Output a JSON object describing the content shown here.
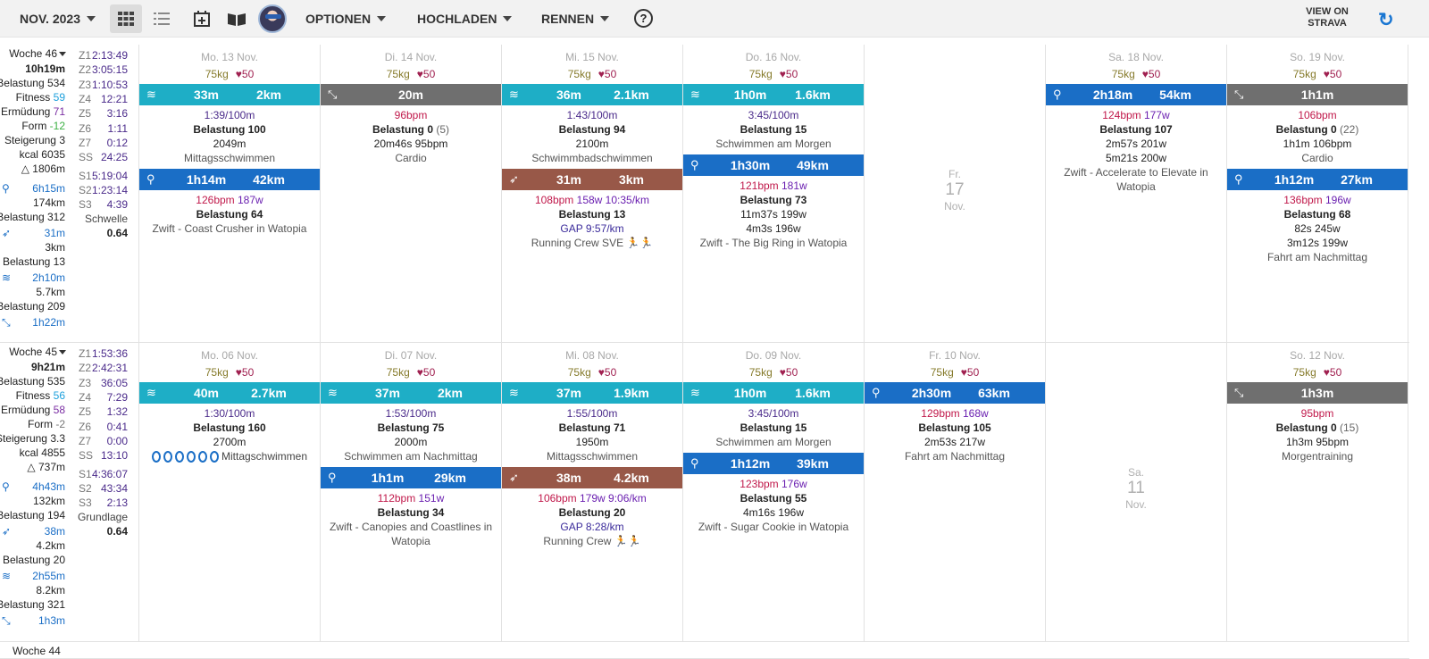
{
  "toolbar": {
    "month": "NOV. 2023",
    "options": "OPTIONEN",
    "upload": "HOCHLADEN",
    "races": "RENNEN",
    "help": "?",
    "strava": "VIEW ON STRAVA"
  },
  "weeks": [
    {
      "label": "Woche 46",
      "time": "10h19m",
      "load": "Belastung 534",
      "fitness_label": "Fitness",
      "fitness": "59",
      "fatigue_label": "Ermüdung",
      "fatigue": "71",
      "form_label": "Form",
      "form": "-12",
      "ramp": "Steigerung 3",
      "kcal": "kcal 6035",
      "elev": "△ 1806m",
      "bike_time": "6h15m",
      "bike_dist": "174km",
      "bike_load": "Belastung 312",
      "run_time": "31m",
      "run_dist": "3km",
      "run_load": "Belastung 13",
      "swim_time": "2h10m",
      "swim_dist": "5.7km",
      "swim_load": "Belastung 209",
      "other_time": "1h22m",
      "zones": [
        [
          "Z1",
          "2:13:49"
        ],
        [
          "Z2",
          "3:05:15"
        ],
        [
          "Z3",
          "1:10:53"
        ],
        [
          "Z4",
          "12:21"
        ],
        [
          "Z5",
          "3:16"
        ],
        [
          "Z6",
          "1:11"
        ],
        [
          "Z7",
          "0:12"
        ],
        [
          "SS",
          "24:25"
        ]
      ],
      "s_zones": [
        [
          "S1",
          "5:19:04"
        ],
        [
          "S2",
          "1:23:14"
        ],
        [
          "S3",
          "4:39"
        ]
      ],
      "type": "Schwelle",
      "type_val": "0.64"
    },
    {
      "label": "Woche 45",
      "time": "9h21m",
      "load": "Belastung 535",
      "fitness_label": "Fitness",
      "fitness": "56",
      "fatigue_label": "Ermüdung",
      "fatigue": "58",
      "form_label": "Form",
      "form": "-2",
      "ramp": "Steigerung 3.3",
      "kcal": "kcal 4855",
      "elev": "△ 737m",
      "bike_time": "4h43m",
      "bike_dist": "132km",
      "bike_load": "Belastung 194",
      "run_time": "38m",
      "run_dist": "4.2km",
      "run_load": "Belastung 20",
      "swim_time": "2h55m",
      "swim_dist": "8.2km",
      "swim_load": "Belastung 321",
      "other_time": "1h3m",
      "zones": [
        [
          "Z1",
          "1:53:36"
        ],
        [
          "Z2",
          "2:42:31"
        ],
        [
          "Z3",
          "36:05"
        ],
        [
          "Z4",
          "7:29"
        ],
        [
          "Z5",
          "1:32"
        ],
        [
          "Z6",
          "0:41"
        ],
        [
          "Z7",
          "0:00"
        ],
        [
          "SS",
          "13:10"
        ]
      ],
      "s_zones": [
        [
          "S1",
          "4:36:07"
        ],
        [
          "S2",
          "43:34"
        ],
        [
          "S3",
          "2:13"
        ]
      ],
      "type": "Grundlage",
      "type_val": "0.64"
    }
  ],
  "w46": [
    {
      "hd": "Mo. 13 Nov.",
      "kg": "75kg",
      "hr": "50",
      "acts": [
        {
          "t": "swim",
          "dur": "33m",
          "dist": "2km",
          "lines": [
            [
              "pur",
              "1:39/100m"
            ],
            [
              "b",
              "Belastung 100"
            ],
            [
              "n",
              "2049m"
            ],
            [
              "m",
              "Mittagsschwimmen"
            ]
          ]
        },
        {
          "t": "bike",
          "dur": "1h14m",
          "dist": "42km",
          "lines": [
            [
              "hrw",
              "126bpm",
              "187w"
            ],
            [
              "b",
              "Belastung 64"
            ],
            [
              "m",
              "Zwift - Coast Crusher in Watopia"
            ]
          ]
        }
      ]
    },
    {
      "hd": "Di. 14 Nov.",
      "kg": "75kg",
      "hr": "50",
      "acts": [
        {
          "t": "other",
          "dur": "20m",
          "dist": "",
          "lines": [
            [
              "hrc",
              "96bpm"
            ],
            [
              "b",
              "Belastung 0",
              "(5)"
            ],
            [
              "n",
              "20m46s 95bpm"
            ],
            [
              "m",
              "Cardio"
            ]
          ]
        }
      ]
    },
    {
      "hd": "Mi. 15 Nov.",
      "kg": "75kg",
      "hr": "50",
      "acts": [
        {
          "t": "swim",
          "dur": "36m",
          "dist": "2.1km",
          "lines": [
            [
              "pur",
              "1:43/100m"
            ],
            [
              "b",
              "Belastung 94"
            ],
            [
              "n",
              "2100m"
            ],
            [
              "m",
              "Schwimmbadschwimmen"
            ]
          ]
        },
        {
          "t": "run",
          "dur": "31m",
          "dist": "3km",
          "lines": [
            [
              "run",
              "108bpm",
              "158w",
              "10:35/km"
            ],
            [
              "b",
              "Belastung 13"
            ],
            [
              "gap",
              "GAP 9:57/km"
            ],
            [
              "m",
              "Running Crew SVE 🏃🏃"
            ]
          ]
        }
      ]
    },
    {
      "hd": "Do. 16 Nov.",
      "kg": "75kg",
      "hr": "50",
      "acts": [
        {
          "t": "swim",
          "dur": "1h0m",
          "dist": "1.6km",
          "lines": [
            [
              "pur",
              "3:45/100m"
            ],
            [
              "b",
              "Belastung 15"
            ],
            [
              "m",
              "Schwimmen am Morgen"
            ]
          ]
        },
        {
          "t": "bike",
          "dur": "1h30m",
          "dist": "49km",
          "lines": [
            [
              "hrw",
              "121bpm",
              "181w"
            ],
            [
              "b",
              "Belastung 73"
            ],
            [
              "n",
              "11m37s 199w"
            ],
            [
              "n",
              "4m3s 196w"
            ],
            [
              "m",
              "Zwift - The Big Ring in Watopia"
            ]
          ]
        }
      ]
    },
    {
      "hd": "",
      "free": [
        "Fr.",
        "17",
        "Nov."
      ],
      "acts": []
    },
    {
      "hd": "Sa. 18 Nov.",
      "kg": "75kg",
      "hr": "50",
      "acts": [
        {
          "t": "bike",
          "dur": "2h18m",
          "dist": "54km",
          "lines": [
            [
              "hrw",
              "124bpm",
              "177w"
            ],
            [
              "b",
              "Belastung 107"
            ],
            [
              "n",
              "2m57s 201w"
            ],
            [
              "n",
              "5m21s 200w"
            ],
            [
              "m",
              "Zwift - Accelerate to Elevate in"
            ],
            [
              "m",
              "Watopia"
            ]
          ]
        }
      ]
    },
    {
      "hd": "So. 19 Nov.",
      "kg": "75kg",
      "hr": "50",
      "acts": [
        {
          "t": "other",
          "dur": "1h1m",
          "dist": "",
          "lines": [
            [
              "hrc",
              "106bpm"
            ],
            [
              "b",
              "Belastung 0",
              "(22)"
            ],
            [
              "n",
              "1h1m 106bpm"
            ],
            [
              "m",
              "Cardio"
            ]
          ]
        },
        {
          "t": "bike",
          "dur": "1h12m",
          "dist": "27km",
          "lines": [
            [
              "hrw",
              "136bpm",
              "196w"
            ],
            [
              "b",
              "Belastung 68"
            ],
            [
              "n",
              "82s 245w"
            ],
            [
              "n",
              "3m12s 199w"
            ],
            [
              "m",
              "Fahrt am Nachmittag"
            ]
          ]
        }
      ]
    }
  ],
  "w45": [
    {
      "hd": "Mo. 06 Nov.",
      "kg": "75kg",
      "hr": "50",
      "acts": [
        {
          "t": "swim",
          "dur": "40m",
          "dist": "2.7km",
          "lines": [
            [
              "pur",
              "1:30/100m"
            ],
            [
              "b",
              "Belastung 160"
            ],
            [
              "n",
              "2700m"
            ],
            [
              "clk",
              "Mittagschwimmen"
            ]
          ]
        }
      ]
    },
    {
      "hd": "Di. 07 Nov.",
      "kg": "75kg",
      "hr": "50",
      "acts": [
        {
          "t": "swim",
          "dur": "37m",
          "dist": "2km",
          "lines": [
            [
              "pur",
              "1:53/100m"
            ],
            [
              "b",
              "Belastung 75"
            ],
            [
              "n",
              "2000m"
            ],
            [
              "m",
              "Schwimmen am Nachmittag"
            ]
          ]
        },
        {
          "t": "bike",
          "dur": "1h1m",
          "dist": "29km",
          "lines": [
            [
              "hrw",
              "112bpm",
              "151w"
            ],
            [
              "b",
              "Belastung 34"
            ],
            [
              "m",
              "Zwift - Canopies and Coastlines in"
            ],
            [
              "m",
              "Watopia"
            ]
          ]
        }
      ]
    },
    {
      "hd": "Mi. 08 Nov.",
      "kg": "75kg",
      "hr": "50",
      "acts": [
        {
          "t": "swim",
          "dur": "37m",
          "dist": "1.9km",
          "lines": [
            [
              "pur",
              "1:55/100m"
            ],
            [
              "b",
              "Belastung 71"
            ],
            [
              "n",
              "1950m"
            ],
            [
              "m",
              "Mittagsschwimmen"
            ]
          ]
        },
        {
          "t": "run",
          "dur": "38m",
          "dist": "4.2km",
          "lines": [
            [
              "run",
              "106bpm",
              "179w",
              "9:06/km"
            ],
            [
              "b",
              "Belastung 20"
            ],
            [
              "gap",
              "GAP 8:28/km"
            ],
            [
              "m",
              "Running Crew 🏃🏃"
            ]
          ]
        }
      ]
    },
    {
      "hd": "Do. 09 Nov.",
      "kg": "75kg",
      "hr": "50",
      "acts": [
        {
          "t": "swim",
          "dur": "1h0m",
          "dist": "1.6km",
          "lines": [
            [
              "pur",
              "3:45/100m"
            ],
            [
              "b",
              "Belastung 15"
            ],
            [
              "m",
              "Schwimmen am Morgen"
            ]
          ]
        },
        {
          "t": "bike",
          "dur": "1h12m",
          "dist": "39km",
          "lines": [
            [
              "hrw",
              "123bpm",
              "176w"
            ],
            [
              "b",
              "Belastung 55"
            ],
            [
              "n",
              "4m16s 196w"
            ],
            [
              "m",
              "Zwift - Sugar Cookie in Watopia"
            ]
          ]
        }
      ]
    },
    {
      "hd": "Fr. 10 Nov.",
      "kg": "75kg",
      "hr": "50",
      "acts": [
        {
          "t": "bike",
          "dur": "2h30m",
          "dist": "63km",
          "lines": [
            [
              "hrw",
              "129bpm",
              "168w"
            ],
            [
              "b",
              "Belastung 105"
            ],
            [
              "n",
              "2m53s 217w"
            ],
            [
              "m",
              "Fahrt am Nachmittag"
            ]
          ]
        }
      ]
    },
    {
      "hd": "",
      "free": [
        "Sa.",
        "11",
        "Nov."
      ],
      "acts": []
    },
    {
      "hd": "So. 12 Nov.",
      "kg": "75kg",
      "hr": "50",
      "acts": [
        {
          "t": "other",
          "dur": "1h3m",
          "dist": "",
          "lines": [
            [
              "hrc",
              "95bpm"
            ],
            [
              "b",
              "Belastung 0",
              "(15)"
            ],
            [
              "n",
              "1h3m 95bpm"
            ],
            [
              "m",
              "Morgentraining"
            ]
          ]
        }
      ]
    }
  ],
  "w44_label": "Woche 44",
  "colors": {
    "swim": "#1eaec6",
    "bike": "#1a6ec6",
    "run": "#985848",
    "other": "#6f6f6f",
    "accent": "#1976d2"
  }
}
